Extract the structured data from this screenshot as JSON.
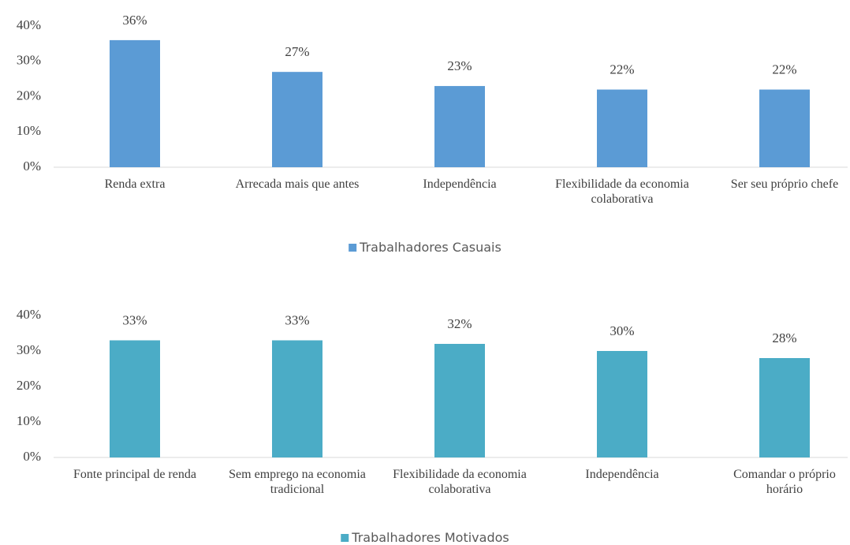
{
  "chart_data": [
    {
      "type": "bar",
      "categories": [
        "Renda extra",
        "Arrecada mais que antes",
        "Independência",
        "Flexibilidade da economia colaborativa",
        "Ser seu próprio chefe"
      ],
      "series": [
        {
          "name": "Trabalhadores Casuais",
          "color": "#5b9bd5",
          "values": [
            36,
            27,
            23,
            22,
            22
          ],
          "value_labels": [
            "36%",
            "27%",
            "23%",
            "22%",
            "22%"
          ]
        }
      ],
      "ylim": [
        0,
        40
      ],
      "yticks": [
        {
          "value": 0,
          "label": "0%"
        },
        {
          "value": 10,
          "label": "10%"
        },
        {
          "value": 20,
          "label": "20%"
        },
        {
          "value": 30,
          "label": "30%"
        },
        {
          "value": 40,
          "label": "40%"
        }
      ],
      "grid": false,
      "legend": "bottom"
    },
    {
      "type": "bar",
      "categories": [
        "Fonte principal de renda",
        "Sem emprego na economia tradicional",
        "Flexibilidade da economia colaborativa",
        "Independência",
        "Comandar o próprio horário"
      ],
      "series": [
        {
          "name": "Trabalhadores Motivados",
          "color": "#4bacc6",
          "values": [
            33,
            33,
            32,
            30,
            28
          ],
          "value_labels": [
            "33%",
            "33%",
            "32%",
            "30%",
            "28%"
          ]
        }
      ],
      "ylim": [
        0,
        40
      ],
      "yticks": [
        {
          "value": 0,
          "label": "0%"
        },
        {
          "value": 10,
          "label": "10%"
        },
        {
          "value": 20,
          "label": "20%"
        },
        {
          "value": 30,
          "label": "30%"
        },
        {
          "value": 40,
          "label": "40%"
        }
      ],
      "grid": false,
      "legend": "bottom"
    }
  ]
}
